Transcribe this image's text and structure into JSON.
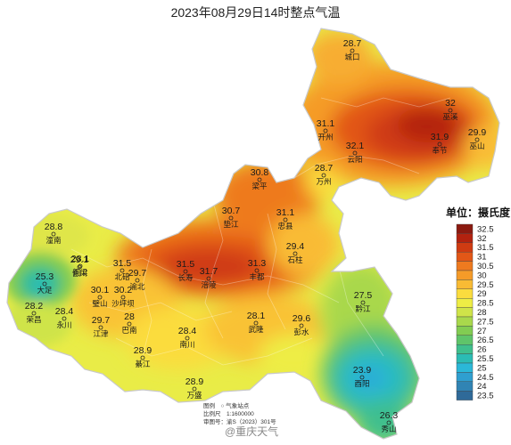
{
  "title": "2023年08月29日14时整点气温",
  "legend": {
    "title": "单位：摄氏度",
    "levels": [
      {
        "label": "32.5",
        "color": "#8b1a10"
      },
      {
        "label": "32",
        "color": "#b3220f"
      },
      {
        "label": "31.5",
        "color": "#cf3b12"
      },
      {
        "label": "31",
        "color": "#e25717"
      },
      {
        "label": "30.5",
        "color": "#ee7a1f"
      },
      {
        "label": "30",
        "color": "#f59b28"
      },
      {
        "label": "29.5",
        "color": "#f9bb34"
      },
      {
        "label": "29",
        "color": "#fbdc3e"
      },
      {
        "label": "28.5",
        "color": "#eeed45"
      },
      {
        "label": "28",
        "color": "#cfe449"
      },
      {
        "label": "27.5",
        "color": "#a9d84c"
      },
      {
        "label": "27",
        "color": "#82cc52"
      },
      {
        "label": "26.5",
        "color": "#5fc46a"
      },
      {
        "label": "26",
        "color": "#3fbf8d"
      },
      {
        "label": "25.5",
        "color": "#2bbcb4"
      },
      {
        "label": "25",
        "color": "#2bb8d8"
      },
      {
        "label": "24.5",
        "color": "#2f9fd0"
      },
      {
        "label": "24",
        "color": "#3084b4"
      },
      {
        "label": "23.5",
        "color": "#2f6a99"
      }
    ]
  },
  "stations": [
    {
      "name": "城口",
      "value": "28.7"
    },
    {
      "name": "巫溪",
      "value": "32"
    },
    {
      "name": "开州",
      "value": "31.1"
    },
    {
      "name": "云阳",
      "value": "32.1"
    },
    {
      "name": "奉节",
      "value": "31.9"
    },
    {
      "name": "巫山",
      "value": "29.9"
    },
    {
      "name": "万州",
      "value": "28.7"
    },
    {
      "name": "梁平",
      "value": "30.8"
    },
    {
      "name": "垫江",
      "value": "30.7"
    },
    {
      "name": "忠县",
      "value": "31.1"
    },
    {
      "name": "石柱",
      "value": "29.4"
    },
    {
      "name": "潼南",
      "value": "28.8"
    },
    {
      "name": "合川",
      "value": "29.1"
    },
    {
      "name": "铜梁",
      "value": "28.1"
    },
    {
      "name": "北碚",
      "value": "31.5"
    },
    {
      "name": "渝北",
      "value": "29.7"
    },
    {
      "name": "大足",
      "value": "25.3"
    },
    {
      "name": "长寿",
      "value": "31.5"
    },
    {
      "name": "涪陵",
      "value": "31.7"
    },
    {
      "name": "丰都",
      "value": "31.3"
    },
    {
      "name": "璧山",
      "value": "30.1"
    },
    {
      "name": "沙坪坝",
      "value": "30.2"
    },
    {
      "name": "荣昌",
      "value": "28.2"
    },
    {
      "name": "永川",
      "value": "28.4"
    },
    {
      "name": "巴南",
      "value": "28"
    },
    {
      "name": "江津",
      "value": "29.7"
    },
    {
      "name": "南川",
      "value": "28.4"
    },
    {
      "name": "武隆",
      "value": "28.1"
    },
    {
      "name": "彭水",
      "value": "29.6"
    },
    {
      "name": "黔江",
      "value": "27.5"
    },
    {
      "name": "綦江",
      "value": "28.9"
    },
    {
      "name": "万盛",
      "value": "28.9"
    },
    {
      "name": "酉阳",
      "value": "23.9"
    },
    {
      "name": "秀山",
      "value": "26.3"
    }
  ],
  "notes": {
    "line1": "图例　○ 气象站点",
    "line2": "比例尺　1:1600000",
    "line3": "审图号：渝S（2023）301号"
  },
  "watermark": "@重庆天气"
}
